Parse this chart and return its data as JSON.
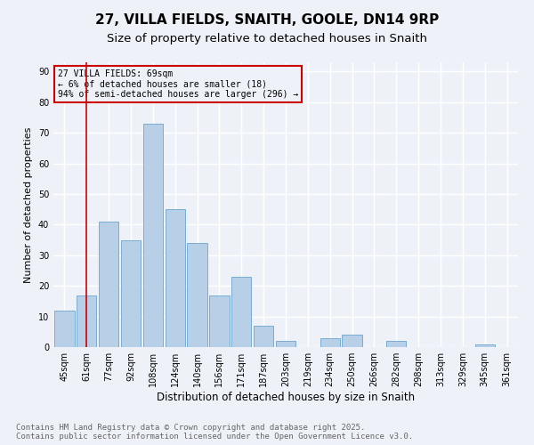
{
  "title": "27, VILLA FIELDS, SNAITH, GOOLE, DN14 9RP",
  "subtitle": "Size of property relative to detached houses in Snaith",
  "xlabel": "Distribution of detached houses by size in Snaith",
  "ylabel": "Number of detached properties",
  "footnote1": "Contains HM Land Registry data © Crown copyright and database right 2025.",
  "footnote2": "Contains public sector information licensed under the Open Government Licence v3.0.",
  "bar_labels": [
    "45sqm",
    "61sqm",
    "77sqm",
    "92sqm",
    "108sqm",
    "124sqm",
    "140sqm",
    "156sqm",
    "171sqm",
    "187sqm",
    "203sqm",
    "219sqm",
    "234sqm",
    "250sqm",
    "266sqm",
    "282sqm",
    "298sqm",
    "313sqm",
    "329sqm",
    "345sqm",
    "361sqm"
  ],
  "bar_values": [
    12,
    17,
    41,
    35,
    73,
    45,
    34,
    17,
    23,
    7,
    2,
    0,
    3,
    4,
    0,
    2,
    0,
    0,
    0,
    1,
    0
  ],
  "bar_color": "#b8cfe8",
  "bar_edge_color": "#7aadd4",
  "vline_x": 1.0,
  "vline_color": "#cc0000",
  "annotation_title": "27 VILLA FIELDS: 69sqm",
  "annotation_line1": "← 6% of detached houses are smaller (18)",
  "annotation_line2": "94% of semi-detached houses are larger (296) →",
  "annotation_box_color": "#cc0000",
  "ylim": [
    0,
    93
  ],
  "yticks": [
    0,
    10,
    20,
    30,
    40,
    50,
    60,
    70,
    80,
    90
  ],
  "background_color": "#eef2f8",
  "grid_color": "#ffffff",
  "title_fontsize": 11,
  "subtitle_fontsize": 9.5,
  "ylabel_fontsize": 8,
  "xlabel_fontsize": 8.5,
  "tick_fontsize": 7,
  "footnote_fontsize": 6.5
}
